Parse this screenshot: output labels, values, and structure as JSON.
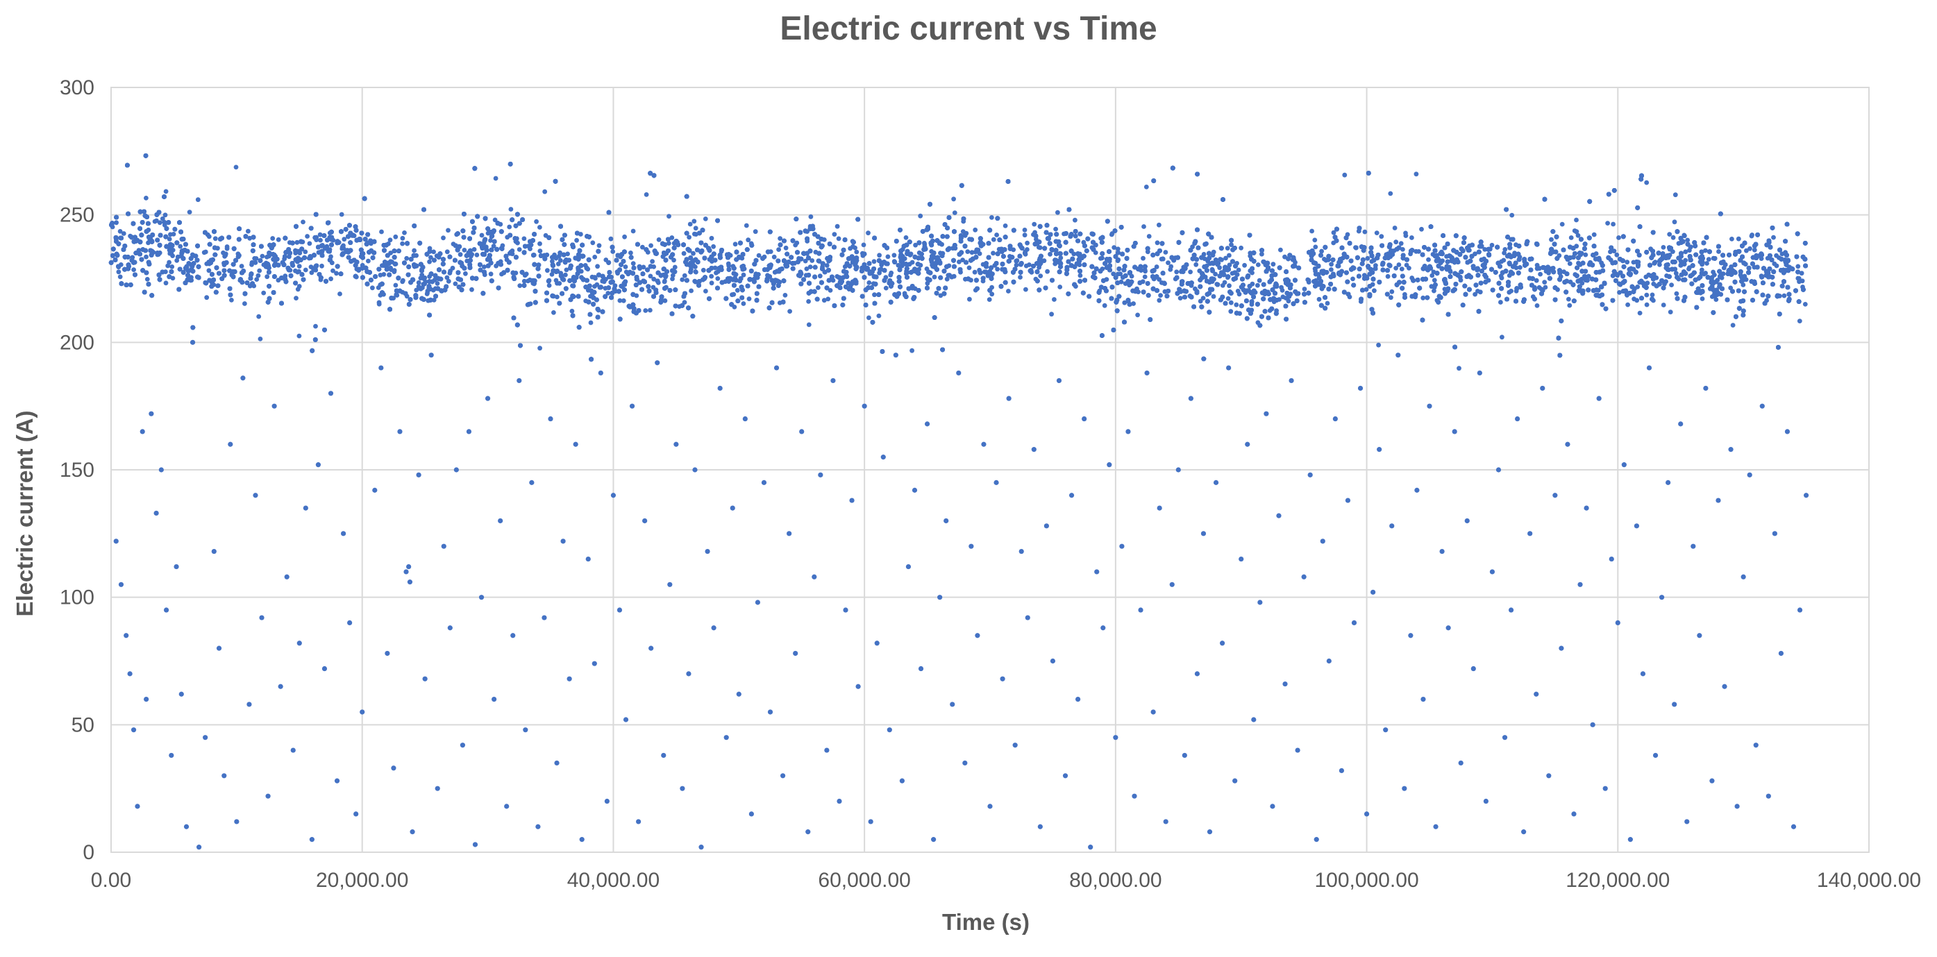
{
  "chart_data": {
    "type": "scatter",
    "title": "Electric current vs Time",
    "xlabel": "Time (s)",
    "ylabel": "Electric current (A)",
    "xlim": [
      0,
      140000
    ],
    "ylim": [
      0,
      300
    ],
    "x_ticks": [
      0,
      20000,
      40000,
      60000,
      80000,
      100000,
      120000,
      140000
    ],
    "x_tick_labels": [
      "0.00",
      "20,000.00",
      "40,000.00",
      "60,000.00",
      "80,000.00",
      "100,000.00",
      "120,000.00",
      "140,000.00"
    ],
    "y_ticks": [
      0,
      50,
      100,
      150,
      200,
      250,
      300
    ],
    "y_tick_labels": [
      "0",
      "50",
      "100",
      "150",
      "200",
      "250",
      "300"
    ],
    "grid": true,
    "legend": "none",
    "marker_color": "#4472C4",
    "series": [
      {
        "x": [
          0,
          1500,
          3000,
          4500,
          6000,
          7500,
          9000,
          10500,
          12000,
          13500,
          15000,
          16500,
          18000,
          19500,
          21000,
          22500,
          24000,
          25500,
          27000,
          28500,
          30000,
          31500,
          33000,
          34500,
          36000,
          37500,
          39000,
          40500,
          42000,
          43500,
          45000,
          46500,
          48000,
          49500,
          51000,
          52500,
          54000,
          55500,
          57000,
          58500,
          60000,
          61500,
          63000,
          64500,
          66000,
          67500,
          69000,
          70500,
          72000,
          73500,
          75000,
          76500,
          78000,
          79500,
          81000,
          82500,
          84000,
          85500,
          87000,
          88500,
          90000,
          91500,
          93000,
          94500,
          96000,
          97500,
          99000,
          100500,
          102000,
          103500,
          105000,
          106500,
          108000,
          109500,
          111000,
          112500,
          114000,
          115500,
          117000,
          118500,
          120000,
          121500,
          123000,
          124500,
          126000,
          127500,
          129000,
          130500,
          132000,
          133500,
          135000
        ],
        "y": [
          236,
          238,
          240,
          235,
          232,
          228,
          232,
          230,
          229,
          231,
          234,
          236,
          235,
          237,
          233,
          229,
          228,
          226,
          231,
          235,
          237,
          236,
          232,
          227,
          228,
          229,
          223,
          224,
          226,
          228,
          229,
          231,
          230,
          228,
          229,
          230,
          232,
          233,
          231,
          230,
          228,
          227,
          231,
          232,
          234,
          233,
          232,
          233,
          234,
          233,
          231,
          232,
          233,
          229,
          226,
          228,
          229,
          228,
          227,
          226,
          224,
          223,
          222,
          225,
          228,
          229,
          230,
          228,
          229,
          230,
          231,
          229,
          228,
          229,
          228,
          230,
          229,
          231,
          230,
          229,
          228,
          227,
          229,
          231,
          230,
          228,
          226,
          228,
          229,
          227,
          226
        ]
      }
    ],
    "outlier_points": [
      [
        400,
        122
      ],
      [
        800,
        105
      ],
      [
        1200,
        85
      ],
      [
        1500,
        70
      ],
      [
        1800,
        48
      ],
      [
        2100,
        18
      ],
      [
        2500,
        165
      ],
      [
        2800,
        60
      ],
      [
        3200,
        172
      ],
      [
        3600,
        133
      ],
      [
        4000,
        150
      ],
      [
        4400,
        95
      ],
      [
        4800,
        38
      ],
      [
        5200,
        112
      ],
      [
        5600,
        62
      ],
      [
        6000,
        10
      ],
      [
        6500,
        200
      ],
      [
        7000,
        2
      ],
      [
        7500,
        45
      ],
      [
        8200,
        118
      ],
      [
        8600,
        80
      ],
      [
        9000,
        30
      ],
      [
        9500,
        160
      ],
      [
        10000,
        12
      ],
      [
        10500,
        186
      ],
      [
        11000,
        58
      ],
      [
        11500,
        140
      ],
      [
        12000,
        92
      ],
      [
        12500,
        22
      ],
      [
        13000,
        175
      ],
      [
        13500,
        65
      ],
      [
        14000,
        108
      ],
      [
        14500,
        40
      ],
      [
        15000,
        82
      ],
      [
        15500,
        135
      ],
      [
        16000,
        5
      ],
      [
        16500,
        152
      ],
      [
        17000,
        72
      ],
      [
        17500,
        180
      ],
      [
        18000,
        28
      ],
      [
        18500,
        125
      ],
      [
        19000,
        90
      ],
      [
        19500,
        15
      ],
      [
        20000,
        55
      ],
      [
        21000,
        142
      ],
      [
        21500,
        190
      ],
      [
        22000,
        78
      ],
      [
        22500,
        33
      ],
      [
        23000,
        165
      ],
      [
        23500,
        110
      ],
      [
        23700,
        112
      ],
      [
        23800,
        106
      ],
      [
        24000,
        8
      ],
      [
        24500,
        148
      ],
      [
        25000,
        68
      ],
      [
        25500,
        195
      ],
      [
        26000,
        25
      ],
      [
        26500,
        120
      ],
      [
        27000,
        88
      ],
      [
        27500,
        150
      ],
      [
        28000,
        42
      ],
      [
        28500,
        165
      ],
      [
        29000,
        3
      ],
      [
        29500,
        100
      ],
      [
        30000,
        178
      ],
      [
        30500,
        60
      ],
      [
        31000,
        130
      ],
      [
        31500,
        18
      ],
      [
        32000,
        85
      ],
      [
        32500,
        185
      ],
      [
        33000,
        48
      ],
      [
        33500,
        145
      ],
      [
        34000,
        10
      ],
      [
        34500,
        92
      ],
      [
        35000,
        170
      ],
      [
        35500,
        35
      ],
      [
        36000,
        122
      ],
      [
        36500,
        68
      ],
      [
        37000,
        160
      ],
      [
        37500,
        5
      ],
      [
        38000,
        115
      ],
      [
        38500,
        74
      ],
      [
        39000,
        188
      ],
      [
        39500,
        20
      ],
      [
        40000,
        140
      ],
      [
        40500,
        95
      ],
      [
        41000,
        52
      ],
      [
        41500,
        175
      ],
      [
        42000,
        12
      ],
      [
        42500,
        130
      ],
      [
        43000,
        80
      ],
      [
        43500,
        192
      ],
      [
        44000,
        38
      ],
      [
        44500,
        105
      ],
      [
        45000,
        160
      ],
      [
        45500,
        25
      ],
      [
        46000,
        70
      ],
      [
        46500,
        150
      ],
      [
        47000,
        2
      ],
      [
        47500,
        118
      ],
      [
        48000,
        88
      ],
      [
        48500,
        182
      ],
      [
        49000,
        45
      ],
      [
        49500,
        135
      ],
      [
        50000,
        62
      ],
      [
        50500,
        170
      ],
      [
        51000,
        15
      ],
      [
        51500,
        98
      ],
      [
        52000,
        145
      ],
      [
        52500,
        55
      ],
      [
        53000,
        190
      ],
      [
        53500,
        30
      ],
      [
        54000,
        125
      ],
      [
        54500,
        78
      ],
      [
        55000,
        165
      ],
      [
        55500,
        8
      ],
      [
        56000,
        108
      ],
      [
        56500,
        148
      ],
      [
        57000,
        40
      ],
      [
        57500,
        185
      ],
      [
        58000,
        20
      ],
      [
        58500,
        95
      ],
      [
        59000,
        138
      ],
      [
        59500,
        65
      ],
      [
        60000,
        175
      ],
      [
        60500,
        12
      ],
      [
        61000,
        82
      ],
      [
        61500,
        155
      ],
      [
        62000,
        48
      ],
      [
        62500,
        195
      ],
      [
        63000,
        28
      ],
      [
        63500,
        112
      ],
      [
        64000,
        142
      ],
      [
        64500,
        72
      ],
      [
        65000,
        168
      ],
      [
        65500,
        5
      ],
      [
        66000,
        100
      ],
      [
        66500,
        130
      ],
      [
        67000,
        58
      ],
      [
        67500,
        188
      ],
      [
        68000,
        35
      ],
      [
        68500,
        120
      ],
      [
        69000,
        85
      ],
      [
        69500,
        160
      ],
      [
        70000,
        18
      ],
      [
        70500,
        145
      ],
      [
        71000,
        68
      ],
      [
        71500,
        178
      ],
      [
        72000,
        42
      ],
      [
        72500,
        118
      ],
      [
        73000,
        92
      ],
      [
        73500,
        158
      ],
      [
        74000,
        10
      ],
      [
        74500,
        128
      ],
      [
        75000,
        75
      ],
      [
        75500,
        185
      ],
      [
        76000,
        30
      ],
      [
        76500,
        140
      ],
      [
        77000,
        60
      ],
      [
        77500,
        170
      ],
      [
        78000,
        2
      ],
      [
        78500,
        110
      ],
      [
        79000,
        88
      ],
      [
        79500,
        152
      ],
      [
        80000,
        45
      ],
      [
        80500,
        120
      ],
      [
        81000,
        165
      ],
      [
        81500,
        22
      ],
      [
        82000,
        95
      ],
      [
        82500,
        188
      ],
      [
        83000,
        55
      ],
      [
        83500,
        135
      ],
      [
        84000,
        12
      ],
      [
        84500,
        105
      ],
      [
        85000,
        150
      ],
      [
        85500,
        38
      ],
      [
        86000,
        178
      ],
      [
        86500,
        70
      ],
      [
        87000,
        125
      ],
      [
        87500,
        8
      ],
      [
        88000,
        145
      ],
      [
        88500,
        82
      ],
      [
        89000,
        190
      ],
      [
        89500,
        28
      ],
      [
        90000,
        115
      ],
      [
        90500,
        160
      ],
      [
        91000,
        52
      ],
      [
        91500,
        98
      ],
      [
        92000,
        172
      ],
      [
        92500,
        18
      ],
      [
        93000,
        132
      ],
      [
        93500,
        66
      ],
      [
        94000,
        185
      ],
      [
        94500,
        40
      ],
      [
        95000,
        108
      ],
      [
        95500,
        148
      ],
      [
        96000,
        5
      ],
      [
        96500,
        122
      ],
      [
        97000,
        75
      ],
      [
        97500,
        170
      ],
      [
        98000,
        32
      ],
      [
        98500,
        138
      ],
      [
        99000,
        90
      ],
      [
        99500,
        182
      ],
      [
        100000,
        15
      ],
      [
        100500,
        102
      ],
      [
        101000,
        158
      ],
      [
        101500,
        48
      ],
      [
        102000,
        128
      ],
      [
        102500,
        195
      ],
      [
        103000,
        25
      ],
      [
        103500,
        85
      ],
      [
        104000,
        142
      ],
      [
        104500,
        60
      ],
      [
        105000,
        175
      ],
      [
        105500,
        10
      ],
      [
        106000,
        118
      ],
      [
        106500,
        88
      ],
      [
        107000,
        165
      ],
      [
        107500,
        35
      ],
      [
        108000,
        130
      ],
      [
        108500,
        72
      ],
      [
        109000,
        188
      ],
      [
        109500,
        20
      ],
      [
        110000,
        110
      ],
      [
        110500,
        150
      ],
      [
        111000,
        45
      ],
      [
        111500,
        95
      ],
      [
        112000,
        170
      ],
      [
        112500,
        8
      ],
      [
        113000,
        125
      ],
      [
        113500,
        62
      ],
      [
        114000,
        182
      ],
      [
        114500,
        30
      ],
      [
        115000,
        140
      ],
      [
        115500,
        80
      ],
      [
        116000,
        160
      ],
      [
        116500,
        15
      ],
      [
        117000,
        105
      ],
      [
        117500,
        135
      ],
      [
        118000,
        50
      ],
      [
        118500,
        178
      ],
      [
        119000,
        25
      ],
      [
        119500,
        115
      ],
      [
        120000,
        90
      ],
      [
        120500,
        152
      ],
      [
        121000,
        5
      ],
      [
        121500,
        128
      ],
      [
        122000,
        70
      ],
      [
        122500,
        190
      ],
      [
        123000,
        38
      ],
      [
        123500,
        100
      ],
      [
        124000,
        145
      ],
      [
        124500,
        58
      ],
      [
        125000,
        168
      ],
      [
        125500,
        12
      ],
      [
        126000,
        120
      ],
      [
        126500,
        85
      ],
      [
        127000,
        182
      ],
      [
        127500,
        28
      ],
      [
        128000,
        138
      ],
      [
        128500,
        65
      ],
      [
        129000,
        158
      ],
      [
        129500,
        18
      ],
      [
        130000,
        108
      ],
      [
        130500,
        148
      ],
      [
        131000,
        42
      ],
      [
        131500,
        175
      ],
      [
        132000,
        22
      ],
      [
        132500,
        125
      ],
      [
        133000,
        78
      ],
      [
        133500,
        165
      ],
      [
        134000,
        10
      ],
      [
        134500,
        95
      ],
      [
        135000,
        140
      ]
    ]
  }
}
